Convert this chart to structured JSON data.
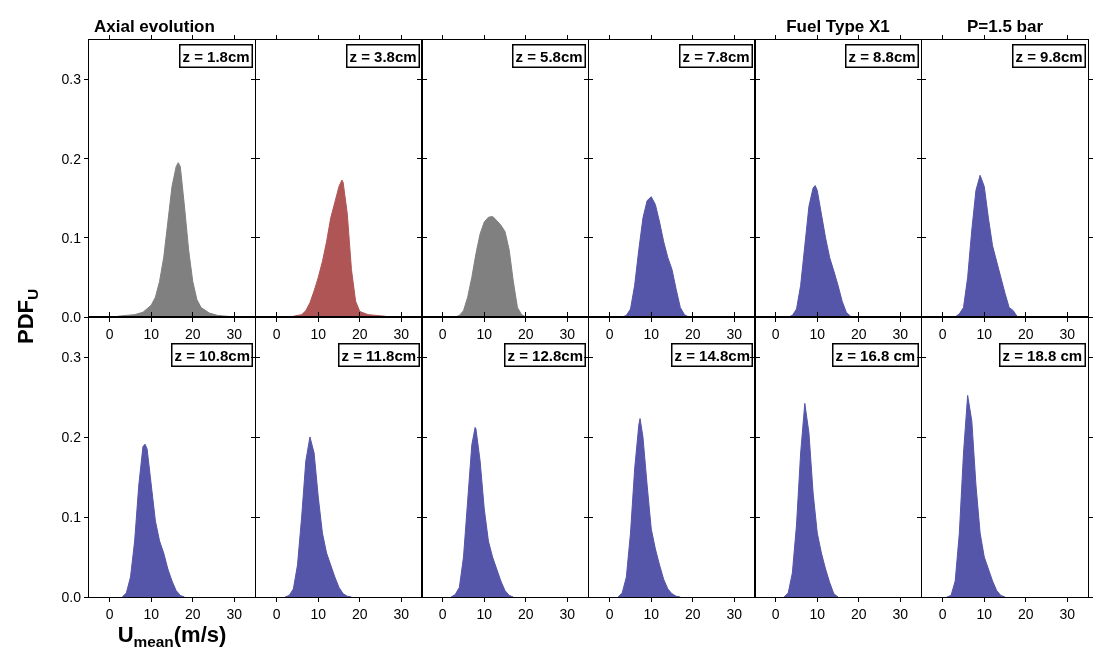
{
  "chart_data": [
    {
      "type": "area",
      "title": "Axial evolution",
      "color": "#808080",
      "x": [
        2,
        4,
        6,
        8,
        10,
        11,
        12,
        13,
        14,
        15,
        16,
        16.5,
        17,
        18,
        19,
        20,
        21,
        22,
        24,
        26,
        28,
        30
      ],
      "values": [
        0.001,
        0.002,
        0.003,
        0.006,
        0.015,
        0.025,
        0.045,
        0.075,
        0.12,
        0.165,
        0.19,
        0.195,
        0.19,
        0.14,
        0.085,
        0.045,
        0.022,
        0.012,
        0.005,
        0.002,
        0.001,
        0
      ],
      "xlim": [
        -5,
        35
      ],
      "ylim": [
        0,
        0.35
      ],
      "xticks": [
        0,
        10,
        20,
        30
      ],
      "yticks": [
        {
          "value": 0,
          "label": "0.0"
        },
        {
          "value": 0.1,
          "label": "0.1"
        },
        {
          "value": 0.2,
          "label": "0.2"
        },
        {
          "value": 0.3,
          "label": "0.3"
        }
      ],
      "annotations": [
        "z = 1.8cm"
      ]
    },
    {
      "type": "area",
      "color": "#b05555",
      "x": [
        4,
        6,
        7,
        8,
        9,
        10,
        11,
        12,
        13,
        14,
        15,
        15.7,
        16,
        17,
        18,
        19,
        20,
        22,
        24,
        26,
        27
      ],
      "values": [
        0.001,
        0.003,
        0.008,
        0.018,
        0.033,
        0.05,
        0.07,
        0.095,
        0.125,
        0.145,
        0.165,
        0.173,
        0.17,
        0.13,
        0.06,
        0.02,
        0.007,
        0.003,
        0.002,
        0.001,
        0
      ],
      "xlim": [
        -5,
        35
      ],
      "ylim": [
        0,
        0.35
      ],
      "xticks": [
        0,
        10,
        20,
        30
      ],
      "yticks": [
        0,
        0.1,
        0.2,
        0.3
      ],
      "tick_labels": "x",
      "annotations": [
        "z = 3.8cm"
      ]
    },
    {
      "type": "area",
      "color": "#808080",
      "x": [
        3,
        4,
        5,
        6,
        7,
        8,
        9,
        10,
        11,
        12,
        13,
        14,
        15,
        16,
        17,
        18,
        19,
        20
      ],
      "values": [
        0,
        0.002,
        0.008,
        0.025,
        0.05,
        0.08,
        0.105,
        0.12,
        0.126,
        0.127,
        0.122,
        0.116,
        0.108,
        0.085,
        0.045,
        0.012,
        0.003,
        0
      ],
      "xlim": [
        -5,
        35
      ],
      "ylim": [
        0,
        0.35
      ],
      "xticks": [
        0,
        10,
        20,
        30
      ],
      "yticks": [
        0,
        0.1,
        0.2,
        0.3
      ],
      "tick_labels": "x",
      "annotations": [
        "z = 5.8cm"
      ]
    },
    {
      "type": "area",
      "color": "#5555aa",
      "x": [
        3,
        4,
        5,
        6,
        7,
        8,
        9,
        10,
        11,
        12,
        13,
        14,
        15,
        16,
        17,
        18,
        19
      ],
      "values": [
        0,
        0.002,
        0.01,
        0.04,
        0.085,
        0.125,
        0.147,
        0.152,
        0.142,
        0.12,
        0.095,
        0.075,
        0.06,
        0.035,
        0.012,
        0.003,
        0
      ],
      "xlim": [
        -5,
        35
      ],
      "ylim": [
        0,
        0.35
      ],
      "xticks": [
        0,
        10,
        20,
        30
      ],
      "yticks": [
        0,
        0.1,
        0.2,
        0.3
      ],
      "tick_labels": "x",
      "annotations": [
        "z = 7.8cm"
      ]
    },
    {
      "type": "area",
      "title": "Fuel Type X1",
      "color": "#5555aa",
      "x": [
        3,
        4,
        5,
        6,
        7,
        8,
        9,
        9.5,
        10,
        11,
        12,
        13,
        14,
        15,
        16,
        17,
        18,
        19
      ],
      "values": [
        0,
        0.002,
        0.01,
        0.04,
        0.09,
        0.14,
        0.163,
        0.166,
        0.16,
        0.13,
        0.1,
        0.075,
        0.058,
        0.04,
        0.02,
        0.006,
        0.001,
        0
      ],
      "xlim": [
        -5,
        35
      ],
      "ylim": [
        0,
        0.35
      ],
      "xticks": [
        0,
        10,
        20,
        30
      ],
      "yticks": [
        0,
        0.1,
        0.2,
        0.3
      ],
      "tick_labels": "x",
      "annotations": [
        "z = 8.8cm"
      ]
    },
    {
      "type": "area",
      "title": "P=1.5 bar",
      "color": "#5555aa",
      "x": [
        3,
        4,
        5,
        6,
        7,
        8,
        9,
        10,
        11,
        12,
        13,
        14,
        15,
        16,
        17,
        18
      ],
      "values": [
        0,
        0.004,
        0.012,
        0.05,
        0.11,
        0.16,
        0.179,
        0.165,
        0.125,
        0.09,
        0.07,
        0.05,
        0.03,
        0.012,
        0.008,
        0
      ],
      "xlim": [
        -5,
        35
      ],
      "ylim": [
        0,
        0.35
      ],
      "xticks": [
        0,
        10,
        20,
        30
      ],
      "yticks": [
        0,
        0.1,
        0.2,
        0.3
      ],
      "tick_labels": "x",
      "annotations": [
        "z = 9.8cm"
      ]
    },
    {
      "type": "area",
      "xlabel": "U$_{mean}$(m/s)",
      "ylabel": "PDF$_{U}$",
      "color": "#5555aa",
      "x": [
        3,
        4,
        5,
        6,
        7,
        8,
        8.5,
        9,
        10,
        11,
        12,
        13,
        14,
        15,
        16,
        17,
        18
      ],
      "values": [
        0,
        0.005,
        0.025,
        0.07,
        0.14,
        0.188,
        0.191,
        0.185,
        0.14,
        0.095,
        0.07,
        0.055,
        0.035,
        0.02,
        0.008,
        0.002,
        0
      ],
      "xlim": [
        -5,
        35
      ],
      "ylim": [
        0,
        0.35
      ],
      "xticks": [
        0,
        10,
        20,
        30
      ],
      "yticks": [
        {
          "value": 0,
          "label": "0.0"
        },
        {
          "value": 0.1,
          "label": "0.1"
        },
        {
          "value": 0.2,
          "label": "0.2"
        },
        {
          "value": 0.3,
          "label": "0.3"
        }
      ],
      "annotations": [
        "z = 10.8cm"
      ]
    },
    {
      "type": "area",
      "color": "#5555aa",
      "x": [
        2,
        3,
        4,
        5,
        6,
        7,
        8,
        9,
        10,
        11,
        12,
        13,
        14,
        15,
        16,
        17,
        18
      ],
      "values": [
        0,
        0.002,
        0.01,
        0.04,
        0.1,
        0.17,
        0.2,
        0.18,
        0.125,
        0.08,
        0.055,
        0.04,
        0.025,
        0.012,
        0.004,
        0.001,
        0
      ],
      "xlim": [
        -5,
        35
      ],
      "ylim": [
        0,
        0.35
      ],
      "xticks": [
        0,
        10,
        20,
        30
      ],
      "yticks": [
        0,
        0.1,
        0.2,
        0.3
      ],
      "tick_labels": "x",
      "annotations": [
        "z = 11.8cm"
      ]
    },
    {
      "type": "area",
      "color": "#5555aa",
      "x": [
        2,
        3,
        4,
        5,
        6,
        7,
        7.8,
        8,
        9,
        10,
        11,
        12,
        13,
        14,
        15,
        16,
        17
      ],
      "values": [
        0,
        0.003,
        0.012,
        0.05,
        0.12,
        0.19,
        0.212,
        0.21,
        0.17,
        0.11,
        0.07,
        0.05,
        0.035,
        0.02,
        0.008,
        0.002,
        0
      ],
      "xlim": [
        -5,
        35
      ],
      "ylim": [
        0,
        0.35
      ],
      "xticks": [
        0,
        10,
        20,
        30
      ],
      "yticks": [
        0,
        0.1,
        0.2,
        0.3
      ],
      "tick_labels": "x",
      "annotations": [
        "z = 12.8cm"
      ]
    },
    {
      "type": "area",
      "color": "#5555aa",
      "x": [
        2,
        3,
        4,
        5,
        6,
        7,
        7.3,
        8,
        9,
        10,
        11,
        12,
        13,
        14,
        15,
        16,
        17
      ],
      "values": [
        0,
        0.005,
        0.025,
        0.08,
        0.16,
        0.215,
        0.223,
        0.2,
        0.14,
        0.085,
        0.06,
        0.04,
        0.022,
        0.01,
        0.004,
        0.001,
        0
      ],
      "xlim": [
        -5,
        35
      ],
      "ylim": [
        0,
        0.35
      ],
      "xticks": [
        0,
        10,
        20,
        30
      ],
      "yticks": [
        0,
        0.1,
        0.2,
        0.3
      ],
      "tick_labels": "x",
      "annotations": [
        "z = 14.8cm"
      ]
    },
    {
      "type": "area",
      "color": "#5555aa",
      "x": [
        2,
        3,
        4,
        5,
        6,
        7,
        8,
        9,
        10,
        11,
        12,
        13,
        14,
        15
      ],
      "values": [
        0,
        0.005,
        0.03,
        0.09,
        0.18,
        0.242,
        0.205,
        0.13,
        0.08,
        0.055,
        0.035,
        0.018,
        0.004,
        0
      ],
      "xlim": [
        -5,
        35
      ],
      "ylim": [
        0,
        0.35
      ],
      "xticks": [
        0,
        10,
        20,
        30
      ],
      "yticks": [
        0,
        0.1,
        0.2,
        0.3
      ],
      "tick_labels": "x",
      "annotations": [
        "z = 16.8 cm"
      ]
    },
    {
      "type": "area",
      "color": "#5555aa",
      "x": [
        1,
        2,
        3,
        4,
        5,
        6,
        7,
        8,
        9,
        10,
        11,
        12,
        13,
        14,
        15
      ],
      "values": [
        0,
        0.002,
        0.02,
        0.08,
        0.18,
        0.252,
        0.22,
        0.14,
        0.08,
        0.05,
        0.035,
        0.02,
        0.008,
        0.002,
        0
      ],
      "xlim": [
        -5,
        35
      ],
      "ylim": [
        0,
        0.35
      ],
      "xticks": [
        0,
        10,
        20,
        30
      ],
      "yticks": [
        0,
        0.1,
        0.2,
        0.3
      ],
      "tick_labels": "x",
      "annotations": [
        "z = 18.8 cm"
      ]
    }
  ]
}
